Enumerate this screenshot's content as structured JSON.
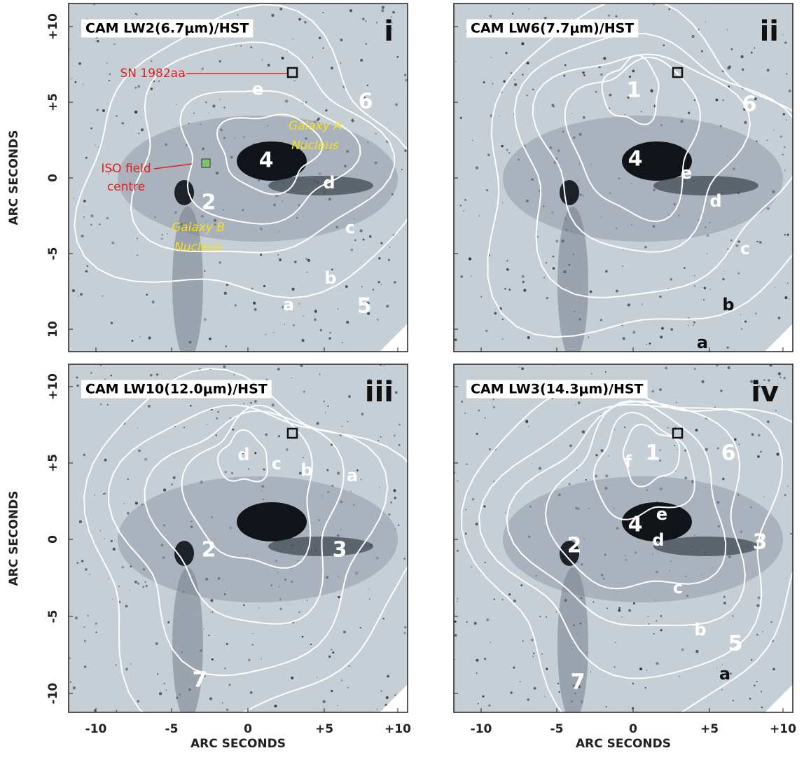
{
  "panels": [
    {
      "title": "CAM LW2(6.7μm)/HST",
      "numeral": "i",
      "labels": [
        "e",
        "4",
        "6",
        "d",
        "2",
        "c",
        "b",
        "a",
        "5"
      ],
      "notes": [
        "Galaxy A",
        "Nucleus",
        "Galaxy B",
        "Nucleus",
        "SN 1982aa",
        "ISO field",
        "centre"
      ]
    },
    {
      "title": "CAM LW6(7.7μm)/HST",
      "numeral": "ii",
      "labels": [
        "1",
        "6",
        "4",
        "e",
        "d",
        "c",
        "b",
        "a"
      ]
    },
    {
      "title": "CAM LW10(12.0μm)/HST",
      "numeral": "iii",
      "labels": [
        "d",
        "c",
        "b",
        "a",
        "2",
        "3",
        "7"
      ]
    },
    {
      "title": "CAM LW3(14.3μm)/HST",
      "numeral": "iv",
      "labels": [
        "6",
        "1",
        "f",
        "e",
        "4",
        "d",
        "2",
        "3",
        "c",
        "b",
        "5",
        "a",
        "7"
      ]
    }
  ],
  "y_tick_labels_top": [
    "+10",
    "+5",
    "0",
    "-5",
    "10"
  ],
  "y_tick_labels_bottom": [
    "+10",
    "+5",
    "0",
    "-5",
    "-10"
  ],
  "x_tick_labels": [
    "-10",
    "-5",
    "0",
    "+5",
    "+10"
  ],
  "axis_label": "ARC SECONDS"
}
